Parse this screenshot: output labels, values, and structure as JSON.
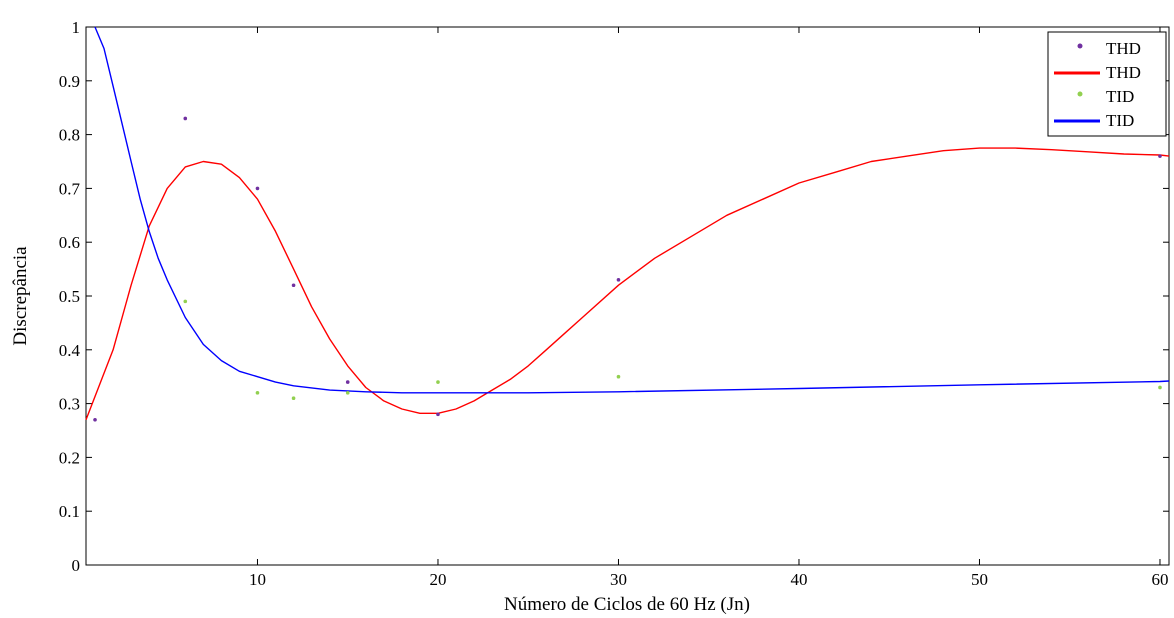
{
  "chart_data": {
    "type": "scatter",
    "title": "",
    "xlabel": "Número de Ciclos de 60 Hz (Jn)",
    "ylabel": "Discrepância",
    "xlim": [
      0.5,
      60.5
    ],
    "ylim": [
      0,
      1
    ],
    "xticks": [
      10,
      20,
      30,
      40,
      50,
      60
    ],
    "yticks": [
      0,
      0.1,
      0.2,
      0.3,
      0.4,
      0.5,
      0.6,
      0.7,
      0.8,
      0.9,
      1
    ],
    "ytick_labels": [
      "0",
      "0.1",
      "0.2",
      "0.3",
      "0.4",
      "0.5",
      "0.6",
      "0.7",
      "0.8",
      "0.9",
      "1"
    ],
    "grid": false,
    "legend_position": "top-right",
    "series": [
      {
        "name": "THD",
        "kind": "points",
        "color": "#7030a0",
        "x": [
          1,
          6,
          10,
          12,
          15,
          20,
          30,
          60
        ],
        "y": [
          0.27,
          0.83,
          0.7,
          0.52,
          0.34,
          0.28,
          0.53,
          0.76
        ]
      },
      {
        "name": "THD",
        "kind": "line",
        "color": "#ff0000",
        "x": [
          0.5,
          2,
          3,
          4,
          5,
          6,
          7,
          8,
          9,
          10,
          11,
          12,
          13,
          14,
          15,
          16,
          17,
          18,
          19,
          20,
          21,
          22,
          23,
          24,
          25,
          26,
          27,
          28,
          30,
          32,
          34,
          36,
          38,
          40,
          42,
          44,
          46,
          48,
          50,
          52,
          54,
          56,
          58,
          60,
          60.5
        ],
        "y": [
          0.27,
          0.4,
          0.52,
          0.63,
          0.7,
          0.74,
          0.75,
          0.745,
          0.72,
          0.68,
          0.62,
          0.55,
          0.48,
          0.42,
          0.37,
          0.33,
          0.305,
          0.29,
          0.282,
          0.282,
          0.29,
          0.305,
          0.325,
          0.345,
          0.37,
          0.4,
          0.43,
          0.46,
          0.52,
          0.57,
          0.61,
          0.65,
          0.68,
          0.71,
          0.73,
          0.75,
          0.76,
          0.77,
          0.775,
          0.775,
          0.772,
          0.768,
          0.764,
          0.762,
          0.76
        ]
      },
      {
        "name": "TID",
        "kind": "points",
        "color": "#92d050",
        "x": [
          6,
          10,
          12,
          15,
          20,
          30,
          60
        ],
        "y": [
          0.49,
          0.32,
          0.31,
          0.32,
          0.34,
          0.35,
          0.33
        ]
      },
      {
        "name": "TID",
        "kind": "line",
        "color": "#0000ff",
        "x": [
          1,
          1.5,
          2,
          2.5,
          3,
          3.5,
          4,
          4.5,
          5,
          6,
          7,
          8,
          9,
          10,
          11,
          12,
          14,
          16,
          18,
          20,
          25,
          30,
          40,
          50,
          60,
          60.5
        ],
        "y": [
          1.0,
          0.96,
          0.89,
          0.82,
          0.75,
          0.68,
          0.62,
          0.57,
          0.53,
          0.46,
          0.41,
          0.38,
          0.36,
          0.35,
          0.34,
          0.333,
          0.325,
          0.322,
          0.32,
          0.32,
          0.32,
          0.322,
          0.328,
          0.335,
          0.341,
          0.342
        ]
      }
    ]
  }
}
